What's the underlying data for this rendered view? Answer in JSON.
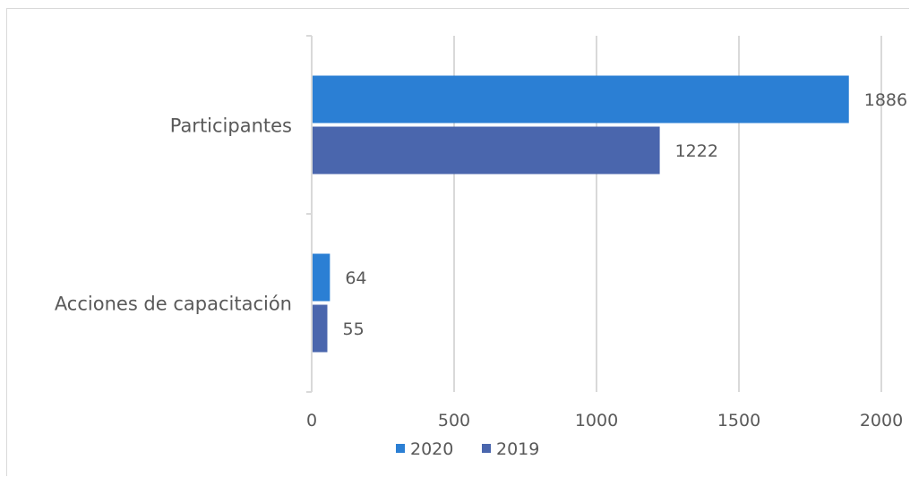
{
  "chart_data": {
    "type": "bar",
    "orientation": "horizontal",
    "categories": [
      "Participantes",
      "Acciones de capacitación"
    ],
    "series": [
      {
        "name": "2020",
        "values": [
          1886,
          64
        ],
        "color": "#2b7fd4"
      },
      {
        "name": "2019",
        "values": [
          1222,
          55
        ],
        "color": "#4a66ad"
      }
    ],
    "xlim": [
      0,
      2000
    ],
    "xticks": [
      "0",
      "500",
      "1000",
      "1500",
      "2000"
    ],
    "xtick_values": [
      0,
      500,
      1000,
      1500,
      2000
    ],
    "data_labels": [
      [
        "1886",
        "64"
      ],
      [
        "1222",
        "55"
      ]
    ],
    "grid": "vertical",
    "legend": "bottom"
  }
}
